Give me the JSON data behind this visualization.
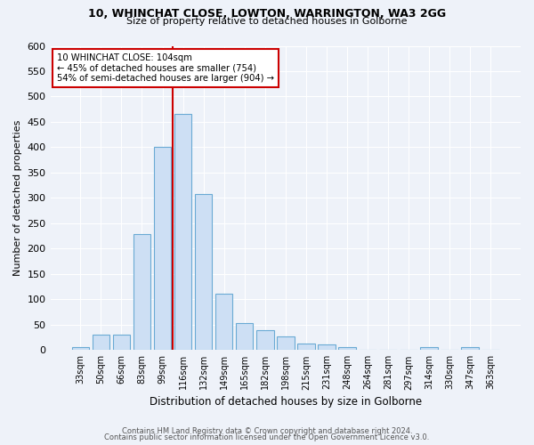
{
  "title1": "10, WHINCHAT CLOSE, LOWTON, WARRINGTON, WA3 2GG",
  "title2": "Size of property relative to detached houses in Golborne",
  "xlabel": "Distribution of detached houses by size in Golborne",
  "ylabel": "Number of detached properties",
  "categories": [
    "33sqm",
    "50sqm",
    "66sqm",
    "83sqm",
    "99sqm",
    "116sqm",
    "132sqm",
    "149sqm",
    "165sqm",
    "182sqm",
    "198sqm",
    "215sqm",
    "231sqm",
    "248sqm",
    "264sqm",
    "281sqm",
    "297sqm",
    "314sqm",
    "330sqm",
    "347sqm",
    "363sqm"
  ],
  "values": [
    5,
    31,
    31,
    228,
    400,
    465,
    307,
    112,
    54,
    40,
    27,
    13,
    11,
    5,
    0,
    0,
    0,
    5,
    0,
    5,
    0
  ],
  "bar_color": "#cddff4",
  "bar_edge_color": "#6aaad4",
  "vline_x_idx": 4.5,
  "vline_color": "#cc0000",
  "annotation_text": "10 WHINCHAT CLOSE: 104sqm\n← 45% of detached houses are smaller (754)\n54% of semi-detached houses are larger (904) →",
  "annotation_box_color": "white",
  "annotation_box_edge": "#cc0000",
  "ylim": [
    0,
    600
  ],
  "yticks": [
    0,
    50,
    100,
    150,
    200,
    250,
    300,
    350,
    400,
    450,
    500,
    550,
    600
  ],
  "footer1": "Contains HM Land Registry data © Crown copyright and database right 2024.",
  "footer2": "Contains public sector information licensed under the Open Government Licence v3.0.",
  "bg_color": "#eef2f9",
  "grid_color": "#ffffff"
}
